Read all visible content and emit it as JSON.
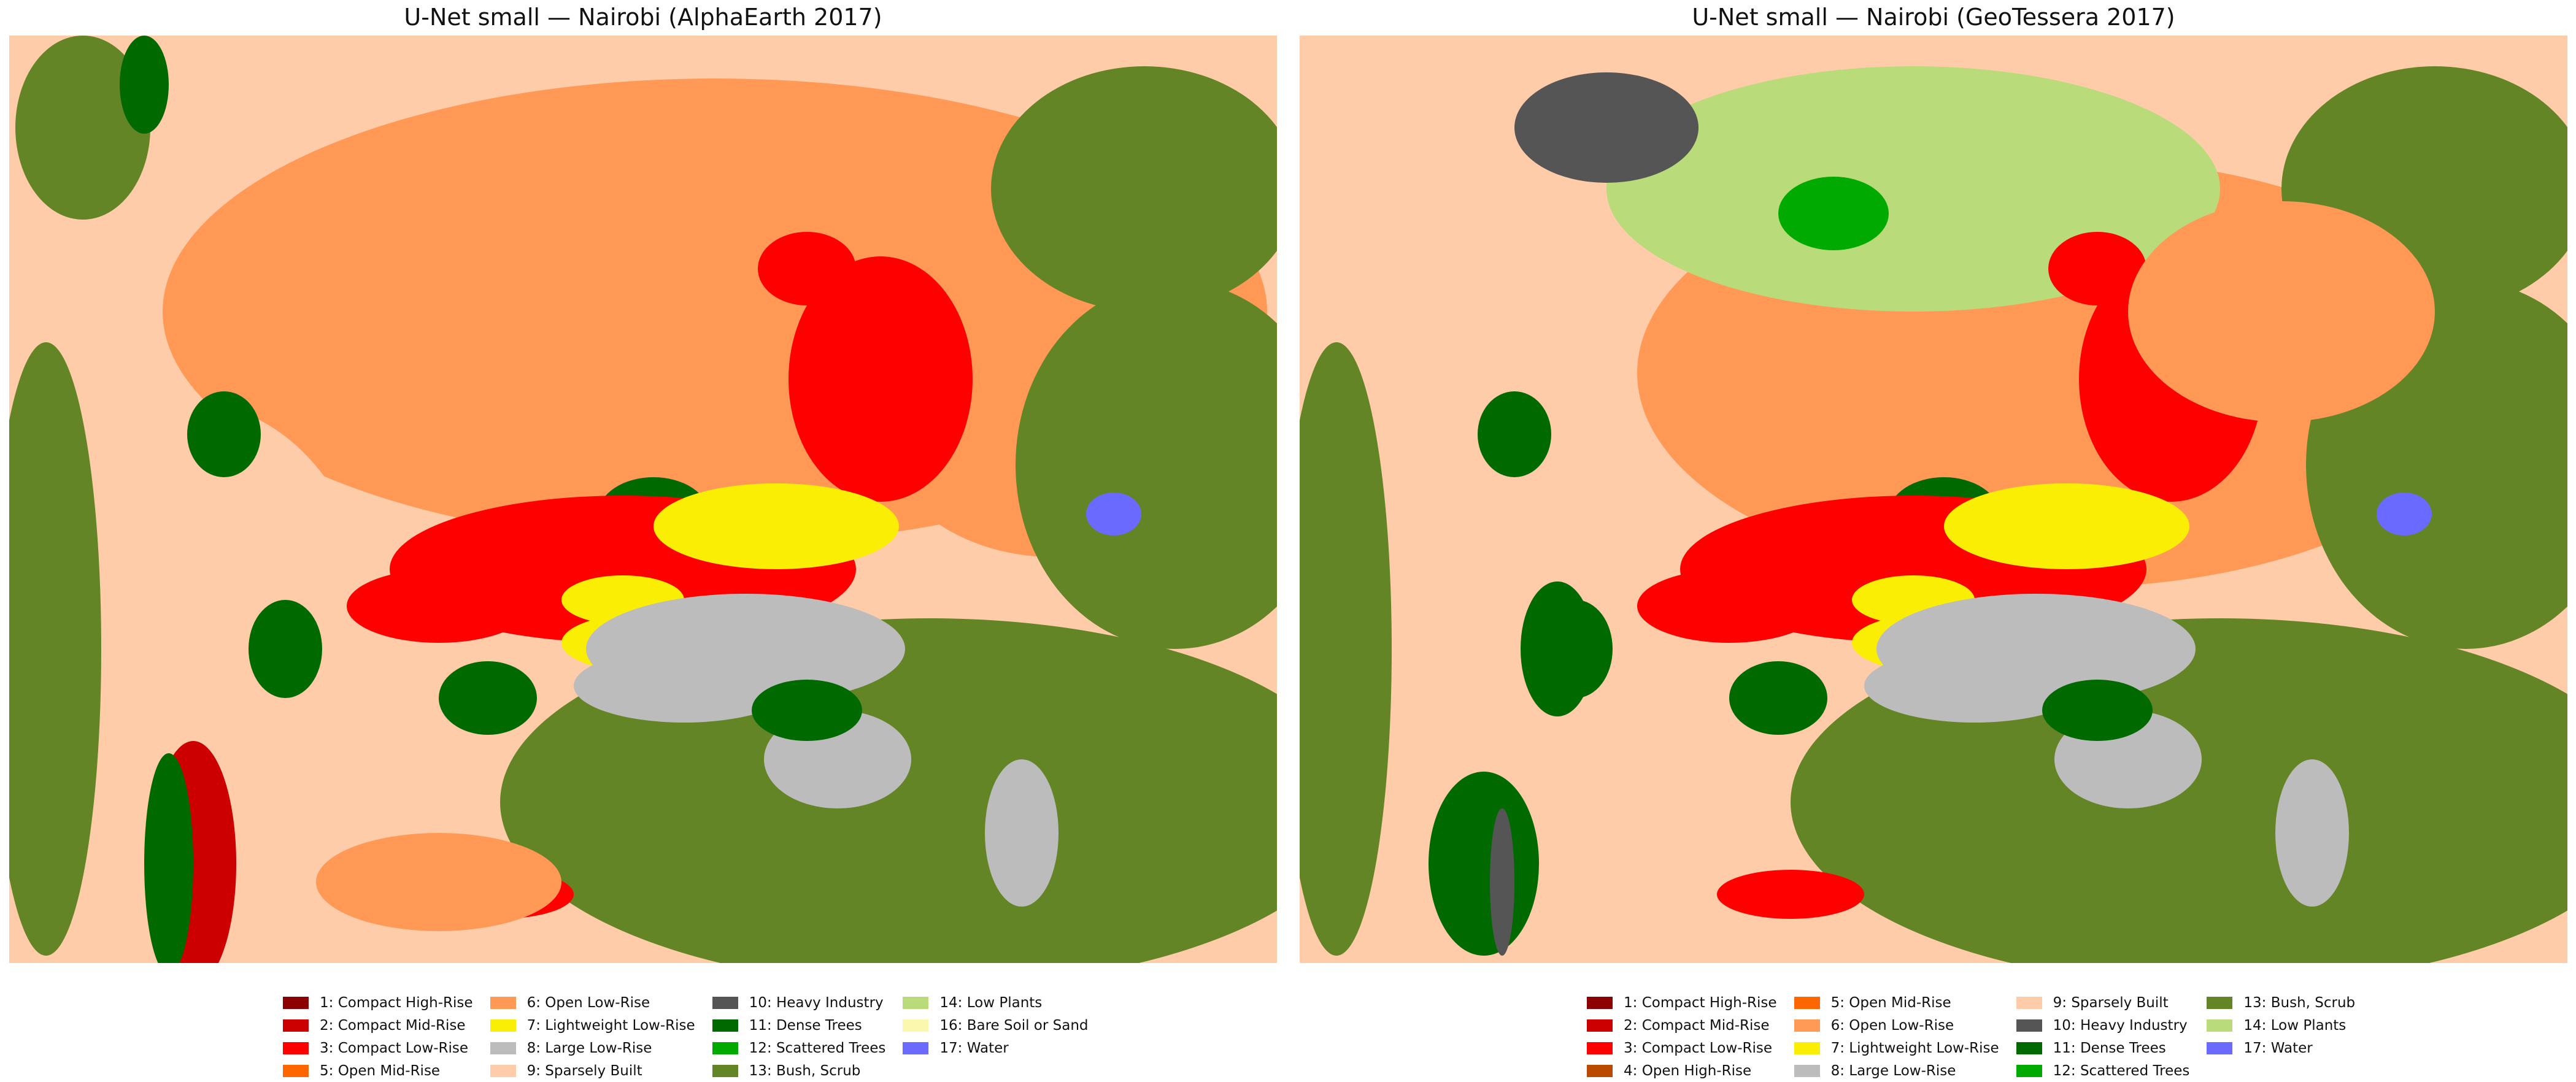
{
  "classes": {
    "1": {
      "label": "1: Compact High-Rise",
      "color": "#8B0000"
    },
    "2": {
      "label": "2: Compact Mid-Rise",
      "color": "#CC0000"
    },
    "3": {
      "label": "3: Compact Low-Rise",
      "color": "#FF0000"
    },
    "4": {
      "label": "4: Open High-Rise",
      "color": "#BA4A00"
    },
    "5": {
      "label": "5: Open Mid-Rise",
      "color": "#FF6600"
    },
    "6": {
      "label": "6: Open Low-Rise",
      "color": "#FF9955"
    },
    "7": {
      "label": "7: Lightweight Low-Rise",
      "color": "#FAEE05"
    },
    "8": {
      "label": "8: Large Low-Rise",
      "color": "#BCBCBC"
    },
    "9": {
      "label": "9: Sparsely Built",
      "color": "#FFCCAA"
    },
    "10": {
      "label": "10: Heavy Industry",
      "color": "#555555"
    },
    "11": {
      "label": "11: Dense Trees",
      "color": "#006A00"
    },
    "12": {
      "label": "12: Scattered Trees",
      "color": "#00AA00"
    },
    "13": {
      "label": "13: Bush, Scrub",
      "color": "#648526"
    },
    "14": {
      "label": "14: Low Plants",
      "color": "#B9DB79"
    },
    "16": {
      "label": "16: Bare Soil or Sand",
      "color": "#FBF7AE"
    },
    "17": {
      "label": "17: Water",
      "color": "#6A6AFF"
    }
  },
  "panels": [
    {
      "title": "U-Net small — Nairobi (AlphaEarth 2017)",
      "legend": [
        "1",
        "2",
        "3",
        "5",
        "6",
        "7",
        "8",
        "9",
        "10",
        "11",
        "12",
        "13",
        "14",
        "16",
        "17"
      ]
    },
    {
      "title": "U-Net small — Nairobi (GeoTessera 2017)",
      "legend": [
        "1",
        "2",
        "3",
        "4",
        "5",
        "6",
        "7",
        "8",
        "9",
        "10",
        "11",
        "12",
        "13",
        "14",
        "17"
      ]
    }
  ]
}
